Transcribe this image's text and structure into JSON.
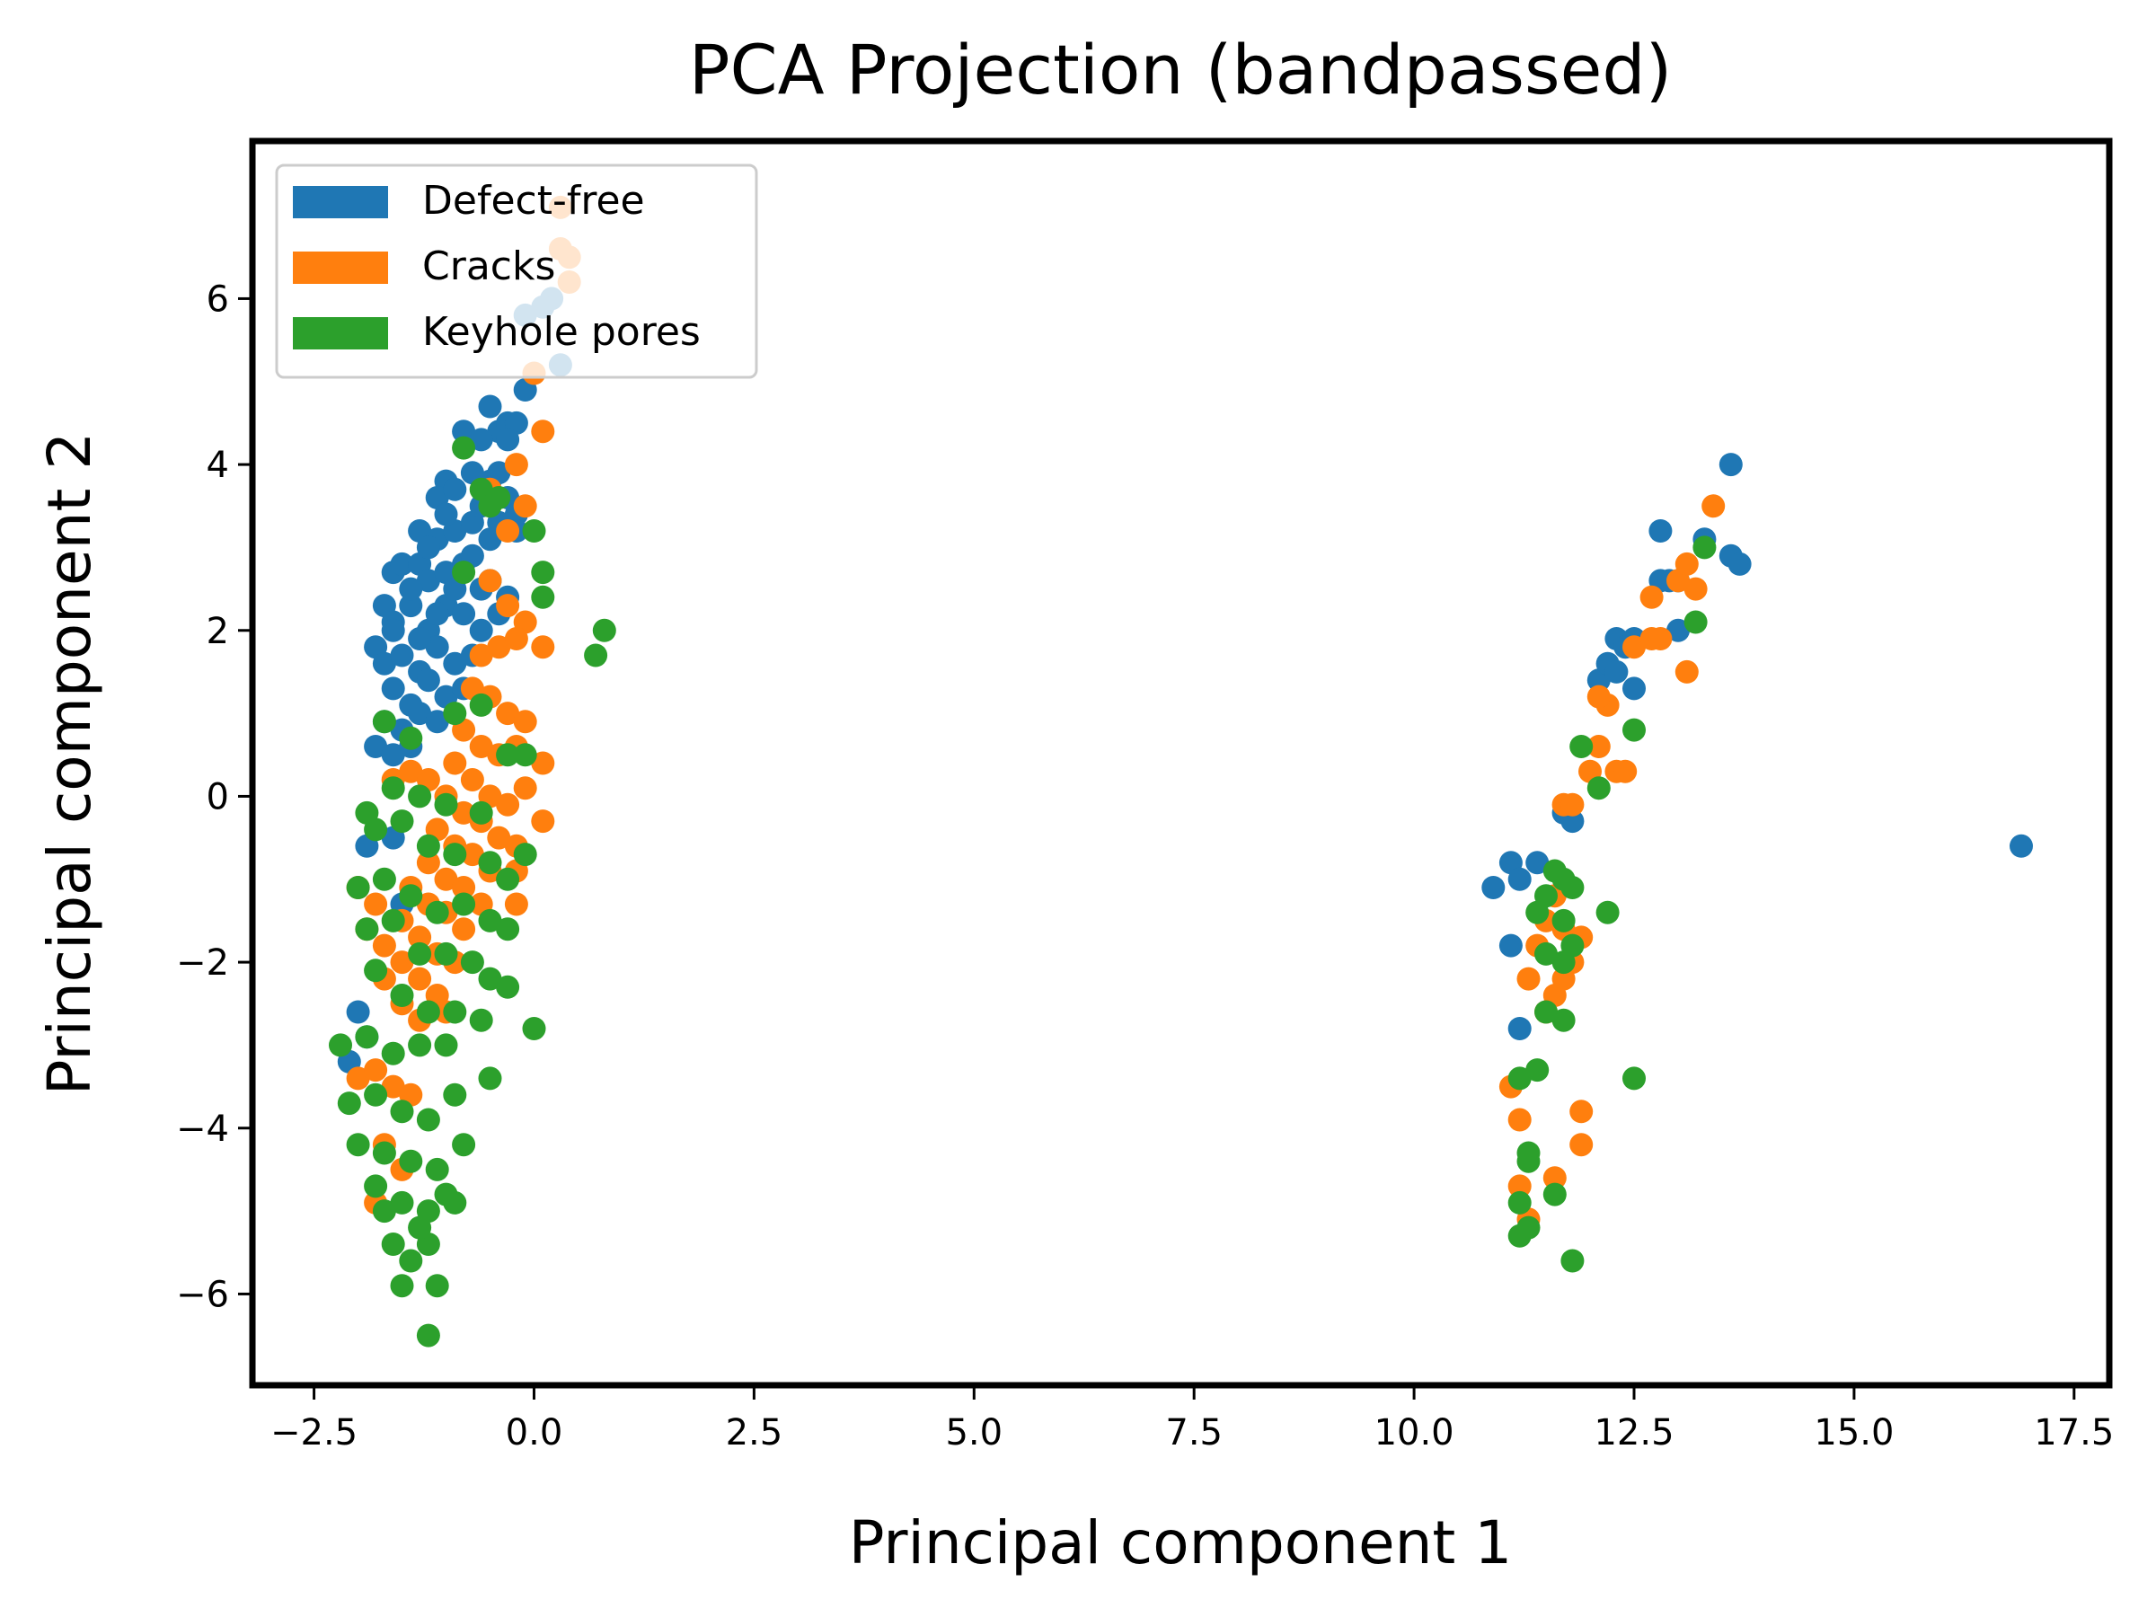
{
  "chart_data": {
    "type": "scatter",
    "title": "PCA Projection (bandpassed)",
    "xlabel": "Principal component 1",
    "ylabel": "Principal component 2",
    "xlim": [
      -3.2,
      17.9
    ],
    "ylim": [
      -7.1,
      7.9
    ],
    "xticks": [
      -2.5,
      0.0,
      2.5,
      5.0,
      7.5,
      10.0,
      12.5,
      15.0,
      17.5
    ],
    "xtick_labels": [
      "−2.5",
      "0.0",
      "2.5",
      "5.0",
      "7.5",
      "10.0",
      "12.5",
      "15.0",
      "17.5"
    ],
    "yticks": [
      -6,
      -4,
      -2,
      0,
      2,
      4,
      6
    ],
    "ytick_labels": [
      "−6",
      "−4",
      "−2",
      "0",
      "2",
      "4",
      "6"
    ],
    "grid": false,
    "legend_position": "top-left",
    "series": [
      {
        "name": "Defect-free",
        "color": "#1f77b4",
        "points": [
          [
            -0.5,
            4.7
          ],
          [
            -0.4,
            4.4
          ],
          [
            -0.3,
            4.5
          ],
          [
            -0.2,
            4.5
          ],
          [
            -0.8,
            4.4
          ],
          [
            -0.6,
            4.3
          ],
          [
            -1.0,
            3.8
          ],
          [
            -1.1,
            3.6
          ],
          [
            -0.9,
            3.7
          ],
          [
            -0.7,
            3.9
          ],
          [
            -0.5,
            3.8
          ],
          [
            -0.3,
            3.6
          ],
          [
            -0.2,
            3.4
          ],
          [
            -1.3,
            3.2
          ],
          [
            -1.1,
            3.1
          ],
          [
            -0.9,
            3.2
          ],
          [
            -0.7,
            3.3
          ],
          [
            -0.5,
            3.1
          ],
          [
            -0.4,
            3.3
          ],
          [
            -1.6,
            2.7
          ],
          [
            -1.5,
            2.8
          ],
          [
            -1.3,
            2.8
          ],
          [
            -1.2,
            2.6
          ],
          [
            -1.0,
            2.7
          ],
          [
            -0.8,
            2.8
          ],
          [
            -0.6,
            2.5
          ],
          [
            -0.3,
            2.4
          ],
          [
            -1.7,
            2.3
          ],
          [
            -1.6,
            2.1
          ],
          [
            -1.4,
            2.3
          ],
          [
            -1.2,
            2.0
          ],
          [
            -1.0,
            2.3
          ],
          [
            -0.8,
            2.2
          ],
          [
            -0.6,
            2.0
          ],
          [
            -0.4,
            2.2
          ],
          [
            -1.8,
            1.8
          ],
          [
            -1.7,
            1.6
          ],
          [
            -1.5,
            1.7
          ],
          [
            -1.3,
            1.5
          ],
          [
            -1.1,
            1.8
          ],
          [
            -0.9,
            1.6
          ],
          [
            -0.7,
            1.7
          ],
          [
            -1.6,
            1.3
          ],
          [
            -1.4,
            1.1
          ],
          [
            -1.2,
            1.4
          ],
          [
            -1.0,
            1.2
          ],
          [
            -0.8,
            1.3
          ],
          [
            -1.7,
            0.9
          ],
          [
            -1.5,
            0.8
          ],
          [
            -1.3,
            1.0
          ],
          [
            -1.1,
            0.9
          ],
          [
            -1.8,
            0.6
          ],
          [
            -1.6,
            0.5
          ],
          [
            -1.4,
            0.6
          ],
          [
            -1.9,
            -0.6
          ],
          [
            -1.6,
            -0.5
          ],
          [
            -1.5,
            -1.3
          ],
          [
            -2.1,
            -3.2
          ],
          [
            -2.0,
            -2.6
          ],
          [
            -1.9,
            -2.9
          ],
          [
            0.2,
            6.0
          ],
          [
            0.1,
            5.9
          ],
          [
            -0.1,
            5.8
          ],
          [
            -0.1,
            4.9
          ],
          [
            0.3,
            5.2
          ],
          [
            -0.3,
            4.3
          ],
          [
            -1.2,
            3.0
          ],
          [
            -1.4,
            2.5
          ],
          [
            -0.2,
            3.2
          ],
          [
            -0.5,
            2.6
          ],
          [
            -1.3,
            1.9
          ],
          [
            -0.9,
            2.5
          ],
          [
            -0.6,
            3.5
          ],
          [
            -0.4,
            3.9
          ],
          [
            -1.0,
            3.4
          ],
          [
            -0.7,
            2.9
          ],
          [
            -1.6,
            2.0
          ],
          [
            -1.1,
            2.2
          ],
          [
            10.9,
            -1.1
          ],
          [
            11.1,
            -0.8
          ],
          [
            11.2,
            -1.0
          ],
          [
            11.4,
            -0.8
          ],
          [
            11.1,
            -1.8
          ],
          [
            11.2,
            -2.8
          ],
          [
            11.7,
            -0.2
          ],
          [
            11.8,
            -0.3
          ],
          [
            12.1,
            1.4
          ],
          [
            12.2,
            1.6
          ],
          [
            12.3,
            1.9
          ],
          [
            12.4,
            1.8
          ],
          [
            12.5,
            1.9
          ],
          [
            12.3,
            1.5
          ],
          [
            12.5,
            1.3
          ],
          [
            12.8,
            2.6
          ],
          [
            12.9,
            2.6
          ],
          [
            13.0,
            2.6
          ],
          [
            12.8,
            3.2
          ],
          [
            13.3,
            3.1
          ],
          [
            13.6,
            2.9
          ],
          [
            13.7,
            2.8
          ],
          [
            13.6,
            4.0
          ],
          [
            13.0,
            2.0
          ],
          [
            16.9,
            -0.6
          ]
        ]
      },
      {
        "name": "Cracks",
        "color": "#ff7f0e",
        "points": [
          [
            0.3,
            7.1
          ],
          [
            0.3,
            6.6
          ],
          [
            0.4,
            6.5
          ],
          [
            0.4,
            6.2
          ],
          [
            0.0,
            5.1
          ],
          [
            0.1,
            4.4
          ],
          [
            -0.2,
            4.0
          ],
          [
            -0.5,
            3.7
          ],
          [
            -0.3,
            3.2
          ],
          [
            -0.1,
            3.5
          ],
          [
            -0.5,
            2.6
          ],
          [
            -0.3,
            2.3
          ],
          [
            -0.1,
            2.1
          ],
          [
            0.1,
            1.8
          ],
          [
            -0.6,
            1.7
          ],
          [
            -0.4,
            1.8
          ],
          [
            -0.2,
            1.9
          ],
          [
            -0.7,
            1.3
          ],
          [
            -0.5,
            1.2
          ],
          [
            -0.3,
            1.0
          ],
          [
            -0.1,
            0.9
          ],
          [
            -0.8,
            0.8
          ],
          [
            -0.6,
            0.6
          ],
          [
            -0.4,
            0.5
          ],
          [
            -0.2,
            0.6
          ],
          [
            0.1,
            0.4
          ],
          [
            -0.9,
            0.4
          ],
          [
            -0.7,
            0.2
          ],
          [
            -0.5,
            0.0
          ],
          [
            -0.3,
            -0.1
          ],
          [
            -0.1,
            0.1
          ],
          [
            0.1,
            -0.3
          ],
          [
            -1.0,
            0.0
          ],
          [
            -0.8,
            -0.2
          ],
          [
            -0.6,
            -0.3
          ],
          [
            -0.4,
            -0.5
          ],
          [
            -0.2,
            -0.6
          ],
          [
            -1.1,
            -0.4
          ],
          [
            -0.9,
            -0.6
          ],
          [
            -0.7,
            -0.7
          ],
          [
            -0.5,
            -0.9
          ],
          [
            -1.2,
            -0.8
          ],
          [
            -1.0,
            -1.0
          ],
          [
            -0.8,
            -1.1
          ],
          [
            -0.6,
            -1.3
          ],
          [
            -0.2,
            -1.3
          ],
          [
            -1.4,
            -1.1
          ],
          [
            -1.2,
            -1.3
          ],
          [
            -1.0,
            -1.4
          ],
          [
            -0.8,
            -1.6
          ],
          [
            -1.5,
            -1.5
          ],
          [
            -1.3,
            -1.7
          ],
          [
            -1.1,
            -1.9
          ],
          [
            -0.9,
            -2.0
          ],
          [
            -1.7,
            -1.8
          ],
          [
            -1.5,
            -2.0
          ],
          [
            -1.3,
            -2.2
          ],
          [
            -1.1,
            -2.4
          ],
          [
            -1.9,
            -1.6
          ],
          [
            -1.7,
            -2.2
          ],
          [
            -1.5,
            -2.5
          ],
          [
            -1.3,
            -2.7
          ],
          [
            -1.0,
            -2.6
          ],
          [
            -2.0,
            -3.4
          ],
          [
            -1.8,
            -3.3
          ],
          [
            -1.6,
            -3.5
          ],
          [
            -1.4,
            -3.6
          ],
          [
            -1.7,
            -4.2
          ],
          [
            -1.5,
            -4.5
          ],
          [
            -1.8,
            -4.9
          ],
          [
            -2.0,
            -1.1
          ],
          [
            -1.8,
            -1.3
          ],
          [
            -0.2,
            -0.9
          ],
          [
            -1.6,
            0.2
          ],
          [
            -1.4,
            0.3
          ],
          [
            -1.2,
            0.2
          ],
          [
            11.1,
            -3.5
          ],
          [
            11.2,
            -3.9
          ],
          [
            11.2,
            -4.7
          ],
          [
            11.3,
            -5.1
          ],
          [
            11.3,
            -2.2
          ],
          [
            11.4,
            -1.8
          ],
          [
            11.5,
            -2.6
          ],
          [
            11.5,
            -1.5
          ],
          [
            11.6,
            -1.2
          ],
          [
            11.6,
            -2.4
          ],
          [
            11.7,
            -2.2
          ],
          [
            11.8,
            -2.0
          ],
          [
            11.9,
            -1.7
          ],
          [
            11.7,
            -1.6
          ],
          [
            11.6,
            -4.6
          ],
          [
            11.9,
            -3.8
          ],
          [
            11.9,
            -4.2
          ],
          [
            11.7,
            -0.1
          ],
          [
            11.8,
            -0.1
          ],
          [
            12.0,
            0.3
          ],
          [
            12.1,
            0.6
          ],
          [
            12.3,
            0.3
          ],
          [
            12.4,
            0.3
          ],
          [
            12.2,
            1.1
          ],
          [
            12.1,
            1.2
          ],
          [
            12.5,
            1.8
          ],
          [
            12.7,
            1.9
          ],
          [
            12.8,
            1.9
          ],
          [
            12.7,
            2.4
          ],
          [
            13.0,
            2.6
          ],
          [
            13.1,
            2.8
          ],
          [
            13.2,
            2.5
          ],
          [
            13.4,
            3.5
          ],
          [
            13.1,
            1.5
          ]
        ]
      },
      {
        "name": "Keyhole pores",
        "color": "#2ca02c",
        "points": [
          [
            -0.8,
            4.2
          ],
          [
            -0.6,
            3.7
          ],
          [
            -0.5,
            3.5
          ],
          [
            -0.4,
            3.6
          ],
          [
            -0.8,
            2.7
          ],
          [
            0.0,
            3.2
          ],
          [
            0.1,
            2.7
          ],
          [
            0.1,
            2.4
          ],
          [
            0.8,
            2.0
          ],
          [
            0.7,
            1.7
          ],
          [
            -1.7,
            0.9
          ],
          [
            -1.4,
            0.7
          ],
          [
            -0.9,
            1.0
          ],
          [
            -0.6,
            1.1
          ],
          [
            -0.3,
            0.5
          ],
          [
            -0.1,
            0.5
          ],
          [
            -1.6,
            0.1
          ],
          [
            -1.3,
            0.0
          ],
          [
            -1.0,
            -0.1
          ],
          [
            -0.6,
            -0.2
          ],
          [
            -1.8,
            -0.4
          ],
          [
            -1.5,
            -0.3
          ],
          [
            -1.2,
            -0.6
          ],
          [
            -0.9,
            -0.7
          ],
          [
            -0.5,
            -0.8
          ],
          [
            -0.3,
            -1.0
          ],
          [
            -0.1,
            -0.7
          ],
          [
            -2.0,
            -1.1
          ],
          [
            -1.7,
            -1.0
          ],
          [
            -1.4,
            -1.2
          ],
          [
            -1.1,
            -1.4
          ],
          [
            -0.8,
            -1.3
          ],
          [
            -0.5,
            -1.5
          ],
          [
            -0.3,
            -1.6
          ],
          [
            -1.9,
            -1.6
          ],
          [
            -1.6,
            -1.5
          ],
          [
            -1.3,
            -1.9
          ],
          [
            -1.0,
            -1.9
          ],
          [
            -0.7,
            -2.0
          ],
          [
            -0.5,
            -2.2
          ],
          [
            -0.3,
            -2.3
          ],
          [
            -1.8,
            -2.1
          ],
          [
            -1.5,
            -2.4
          ],
          [
            -1.2,
            -2.6
          ],
          [
            -0.9,
            -2.6
          ],
          [
            -0.6,
            -2.7
          ],
          [
            0.0,
            -2.8
          ],
          [
            -2.2,
            -3.0
          ],
          [
            -1.9,
            -2.9
          ],
          [
            -1.6,
            -3.1
          ],
          [
            -1.3,
            -3.0
          ],
          [
            -1.0,
            -3.0
          ],
          [
            -0.5,
            -3.4
          ],
          [
            -2.1,
            -3.7
          ],
          [
            -1.8,
            -3.6
          ],
          [
            -1.5,
            -3.8
          ],
          [
            -1.2,
            -3.9
          ],
          [
            -0.9,
            -3.6
          ],
          [
            -0.8,
            -4.2
          ],
          [
            -2.0,
            -4.2
          ],
          [
            -1.7,
            -4.3
          ],
          [
            -1.4,
            -4.4
          ],
          [
            -1.1,
            -4.5
          ],
          [
            -1.0,
            -4.8
          ],
          [
            -1.8,
            -4.7
          ],
          [
            -1.5,
            -4.9
          ],
          [
            -1.2,
            -5.0
          ],
          [
            -1.6,
            -5.4
          ],
          [
            -1.4,
            -5.6
          ],
          [
            -1.2,
            -5.4
          ],
          [
            -1.5,
            -5.9
          ],
          [
            -1.1,
            -5.9
          ],
          [
            -1.2,
            -6.5
          ],
          [
            -0.9,
            -4.9
          ],
          [
            -1.3,
            -5.2
          ],
          [
            -1.7,
            -5.0
          ],
          [
            -1.9,
            -0.2
          ],
          [
            11.2,
            -5.3
          ],
          [
            11.3,
            -5.2
          ],
          [
            11.2,
            -4.9
          ],
          [
            11.3,
            -4.4
          ],
          [
            11.3,
            -4.3
          ],
          [
            11.2,
            -3.4
          ],
          [
            11.4,
            -3.3
          ],
          [
            11.6,
            -4.8
          ],
          [
            11.8,
            -5.6
          ],
          [
            11.4,
            -1.4
          ],
          [
            11.5,
            -1.2
          ],
          [
            11.6,
            -0.9
          ],
          [
            11.7,
            -1.0
          ],
          [
            11.8,
            -1.1
          ],
          [
            11.7,
            -1.5
          ],
          [
            11.8,
            -1.8
          ],
          [
            11.7,
            -2.0
          ],
          [
            11.7,
            -2.7
          ],
          [
            11.5,
            -2.6
          ],
          [
            12.2,
            -1.4
          ],
          [
            12.5,
            -3.4
          ],
          [
            11.9,
            0.6
          ],
          [
            12.1,
            0.1
          ],
          [
            12.5,
            0.8
          ],
          [
            13.2,
            2.1
          ],
          [
            13.3,
            3.0
          ],
          [
            11.5,
            -1.9
          ]
        ]
      }
    ]
  }
}
